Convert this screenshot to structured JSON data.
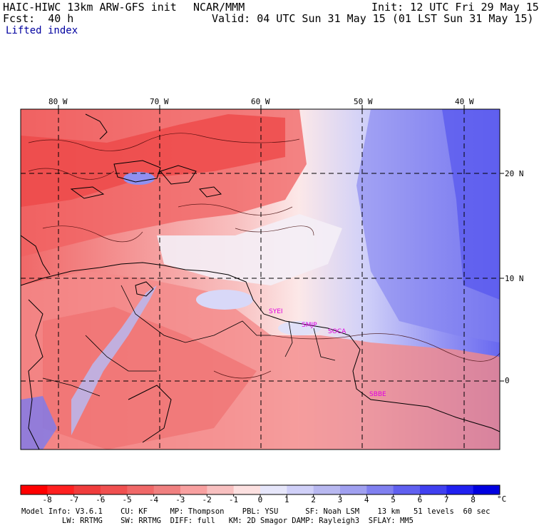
{
  "header": {
    "model": "HAIC-HIWC 13km ARW-GFS init",
    "org": "NCAR/MMM",
    "init": "Init: 12 UTC Fri 29 May 15",
    "fcst": "Fcst:  40 h",
    "valid": "Valid: 04 UTC Sun 31 May 15 (01 LST Sun 31 May 15)",
    "field": "Lifted index"
  },
  "axes": {
    "lon_labels": [
      "80 W",
      "70 W",
      "60 W",
      "50 W",
      "40 W"
    ],
    "lat_labels": [
      "20 N",
      "10 N",
      "0"
    ]
  },
  "stations": [
    "SYEI",
    "SMJP",
    "SOCA",
    "SBBE"
  ],
  "colorbar": {
    "ticks": [
      "-8",
      "-7",
      "-6",
      "-5",
      "-4",
      "-3",
      "-2",
      "-1",
      "0",
      "1",
      "2",
      "3",
      "4",
      "5",
      "6",
      "7",
      "8"
    ],
    "unit": "°C",
    "colors": [
      "#ff0000",
      "#ff2020",
      "#f03c3c",
      "#f05050",
      "#f06868",
      "#f08080",
      "#f8a0a0",
      "#f8c0c0",
      "#fce0e0",
      "#e6e6fa",
      "#d0d0f8",
      "#b8b8f0",
      "#a0a0f0",
      "#8080f0",
      "#6060f0",
      "#4040f0",
      "#2020f0",
      "#0000e0"
    ]
  },
  "footer": {
    "line1": "Model Info: V3.6.1    CU: KF     MP: Thompson    PBL: YSU      SF: Noah LSM    13 km   51 levels  60 sec",
    "line2": "         LW: RRTMG    SW: RRTMG  DIFF: full   KM: 2D Smagor DAMP: Rayleigh3  SFLAY: MM5"
  }
}
